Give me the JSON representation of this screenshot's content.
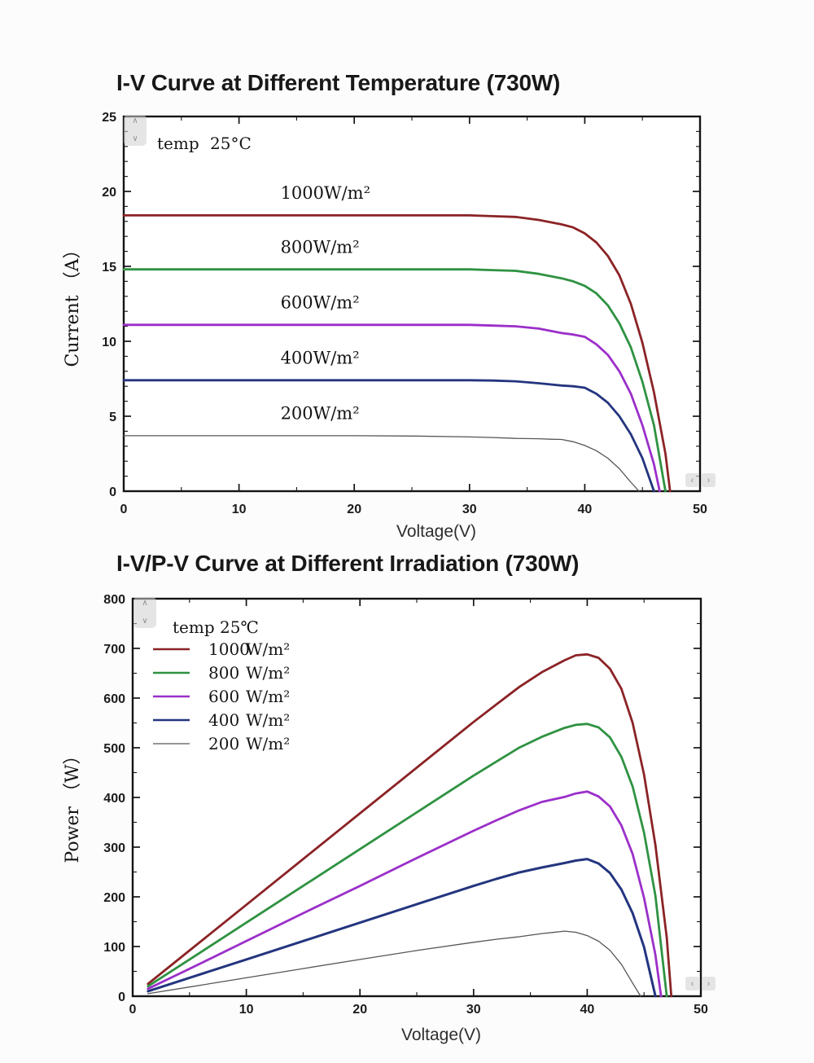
{
  "page_bg": "#fcfcfc",
  "icons": {
    "up": "∧",
    "down": "∨",
    "left": "‹",
    "right": "›"
  },
  "chart_data": [
    {
      "type": "line",
      "title": "I-V Curve at Different Temperature (730W)",
      "xlabel": "Voltage(V)",
      "ylabel": "Current （A）",
      "annotation": {
        "label": "temp",
        "value": "25°C"
      },
      "xlim": [
        0,
        50
      ],
      "ylim": [
        0,
        25
      ],
      "x_axis": {
        "major": 10,
        "minor": 5,
        "labels": [
          "0",
          "10",
          "20",
          "30",
          "40",
          "50"
        ]
      },
      "y_axis": {
        "major": 5,
        "minor": 1,
        "labels": [
          "0",
          "5",
          "10",
          "15",
          "20",
          "25"
        ]
      },
      "grid": false,
      "series": [
        {
          "name": "1000W/m2",
          "color": "#8b2326",
          "width": 2.8,
          "curve_label": {
            "text": "1000W/m²",
            "x": 13.6,
            "y": 19.5
          },
          "points": [
            [
              0,
              18.4
            ],
            [
              30,
              18.4
            ],
            [
              32,
              18.35
            ],
            [
              34,
              18.3
            ],
            [
              36,
              18.1
            ],
            [
              38,
              17.8
            ],
            [
              39,
              17.6
            ],
            [
              40,
              17.2
            ],
            [
              41,
              16.6
            ],
            [
              42,
              15.7
            ],
            [
              43,
              14.4
            ],
            [
              44,
              12.5
            ],
            [
              45,
              9.9
            ],
            [
              46,
              6.6
            ],
            [
              47,
              2.5
            ],
            [
              47.4,
              0
            ]
          ]
        },
        {
          "name": "800W/m2",
          "color": "#2f9242",
          "width": 2.8,
          "curve_label": {
            "text": "800W/m²",
            "x": 13.6,
            "y": 15.9
          },
          "points": [
            [
              0,
              14.8
            ],
            [
              30,
              14.8
            ],
            [
              32,
              14.75
            ],
            [
              34,
              14.7
            ],
            [
              36,
              14.5
            ],
            [
              38,
              14.2
            ],
            [
              39,
              14.0
            ],
            [
              40,
              13.7
            ],
            [
              41,
              13.2
            ],
            [
              42,
              12.4
            ],
            [
              43,
              11.2
            ],
            [
              44,
              9.6
            ],
            [
              45,
              7.3
            ],
            [
              46,
              4.4
            ],
            [
              47,
              0
            ]
          ]
        },
        {
          "name": "600W/m2",
          "color": "#9b2fc9",
          "width": 2.8,
          "curve_label": {
            "text": "600W/m²",
            "x": 13.6,
            "y": 12.2
          },
          "points": [
            [
              0,
              11.1
            ],
            [
              30,
              11.1
            ],
            [
              32,
              11.05
            ],
            [
              34,
              11.0
            ],
            [
              36,
              10.85
            ],
            [
              38,
              10.55
            ],
            [
              39,
              10.45
            ],
            [
              40,
              10.3
            ],
            [
              41,
              9.8
            ],
            [
              42,
              9.1
            ],
            [
              43,
              8.0
            ],
            [
              44,
              6.5
            ],
            [
              45,
              4.4
            ],
            [
              46,
              1.8
            ],
            [
              46.5,
              0
            ]
          ]
        },
        {
          "name": "400W/m2",
          "color": "#24357f",
          "width": 2.8,
          "curve_label": {
            "text": "400W/m²",
            "x": 13.6,
            "y": 8.5
          },
          "points": [
            [
              0,
              7.4
            ],
            [
              30,
              7.4
            ],
            [
              32,
              7.38
            ],
            [
              34,
              7.33
            ],
            [
              36,
              7.2
            ],
            [
              38,
              7.05
            ],
            [
              39,
              7.0
            ],
            [
              40,
              6.9
            ],
            [
              41,
              6.5
            ],
            [
              42,
              5.9
            ],
            [
              43,
              5.0
            ],
            [
              44,
              3.8
            ],
            [
              45,
              2.2
            ],
            [
              46,
              0
            ]
          ]
        },
        {
          "name": "200W/m2",
          "color": "#565656",
          "width": 1.3,
          "curve_label": {
            "text": "200W/m²",
            "x": 13.6,
            "y": 4.8
          },
          "points": [
            [
              0,
              3.7
            ],
            [
              20,
              3.7
            ],
            [
              25,
              3.68
            ],
            [
              30,
              3.62
            ],
            [
              32,
              3.58
            ],
            [
              34,
              3.52
            ],
            [
              36,
              3.5
            ],
            [
              37,
              3.47
            ],
            [
              38,
              3.45
            ],
            [
              39,
              3.3
            ],
            [
              40,
              3.05
            ],
            [
              41,
              2.7
            ],
            [
              42,
              2.2
            ],
            [
              43,
              1.5
            ],
            [
              44,
              0.6
            ],
            [
              44.7,
              0
            ]
          ]
        }
      ]
    },
    {
      "type": "line",
      "title": "I-V/P-V Curve at Different Irradiation (730W)",
      "xlabel": "Voltage(V)",
      "ylabel": "Power （W）",
      "annotation": {
        "label": "temp",
        "value": "25℃"
      },
      "xlim": [
        0,
        50
      ],
      "ylim": [
        0,
        800
      ],
      "x_axis": {
        "major": 10,
        "minor": 5,
        "labels": [
          "0",
          "10",
          "20",
          "30",
          "40",
          "50"
        ]
      },
      "y_axis": {
        "major": 100,
        "minor": 50,
        "labels": [
          "0",
          "100",
          "200",
          "300",
          "400",
          "500",
          "600",
          "700",
          "800"
        ]
      },
      "grid": false,
      "legend": {
        "position": "top-left"
      },
      "series": [
        {
          "name": "1000 W/m2",
          "color": "#8b2326",
          "width": 2.8,
          "legend_value": "1000",
          "legend_unit": "W/m²",
          "points": [
            [
              1.35,
              24.8
            ],
            [
              5,
              92
            ],
            [
              10,
              184
            ],
            [
              15,
              276
            ],
            [
              20,
              368
            ],
            [
              25,
              460
            ],
            [
              30,
              552
            ],
            [
              32,
              587
            ],
            [
              34,
              622
            ],
            [
              36,
              652
            ],
            [
              38,
              676
            ],
            [
              39,
              686
            ],
            [
              40,
              688
            ],
            [
              41,
              681
            ],
            [
              42,
              659
            ],
            [
              43,
              619
            ],
            [
              44,
              550
            ],
            [
              45,
              446
            ],
            [
              46,
              304
            ],
            [
              47,
              118
            ],
            [
              47.4,
              0
            ]
          ]
        },
        {
          "name": "800 W/m2",
          "color": "#2f9242",
          "width": 2.8,
          "legend_value": "800",
          "legend_unit": "W/m²",
          "points": [
            [
              1.35,
              20
            ],
            [
              5,
              74
            ],
            [
              10,
              148
            ],
            [
              15,
              222
            ],
            [
              20,
              296
            ],
            [
              25,
              370
            ],
            [
              30,
              444
            ],
            [
              32,
              472
            ],
            [
              34,
              500
            ],
            [
              36,
              522
            ],
            [
              38,
              540
            ],
            [
              39,
              546
            ],
            [
              40,
              548
            ],
            [
              41,
              541
            ],
            [
              42,
              521
            ],
            [
              43,
              482
            ],
            [
              44,
              422
            ],
            [
              45,
              329
            ],
            [
              46,
              202
            ],
            [
              47,
              0
            ]
          ]
        },
        {
          "name": "600 W/m2",
          "color": "#9b2fc9",
          "width": 2.8,
          "legend_value": "600",
          "legend_unit": "W/m²",
          "points": [
            [
              1.35,
              15
            ],
            [
              5,
              55
            ],
            [
              10,
              111
            ],
            [
              15,
              167
            ],
            [
              20,
              222
            ],
            [
              25,
              278
            ],
            [
              30,
              333
            ],
            [
              32,
              354
            ],
            [
              34,
              374
            ],
            [
              36,
              391
            ],
            [
              38,
              401
            ],
            [
              39,
              408
            ],
            [
              40,
              412
            ],
            [
              41,
              402
            ],
            [
              42,
              382
            ],
            [
              43,
              344
            ],
            [
              44,
              286
            ],
            [
              45,
              198
            ],
            [
              46,
              83
            ],
            [
              46.5,
              0
            ]
          ]
        },
        {
          "name": "400 W/m2",
          "color": "#24357f",
          "width": 3.0,
          "legend_value": "400",
          "legend_unit": "W/m²",
          "points": [
            [
              1.35,
              10
            ],
            [
              5,
              37
            ],
            [
              10,
              74
            ],
            [
              15,
              111
            ],
            [
              20,
              148
            ],
            [
              25,
              185
            ],
            [
              30,
              222
            ],
            [
              32,
              236
            ],
            [
              34,
              249
            ],
            [
              36,
              259
            ],
            [
              38,
              268
            ],
            [
              39,
              273
            ],
            [
              40,
              276
            ],
            [
              41,
              267
            ],
            [
              42,
              248
            ],
            [
              43,
              215
            ],
            [
              44,
              167
            ],
            [
              45,
              99
            ],
            [
              46,
              0
            ]
          ]
        },
        {
          "name": "200 W/m2",
          "color": "#565656",
          "width": 1.3,
          "legend_value": "200",
          "legend_unit": "W/m²",
          "points": [
            [
              1.35,
              5
            ],
            [
              5,
              18.5
            ],
            [
              10,
              37
            ],
            [
              15,
              55.5
            ],
            [
              20,
              74
            ],
            [
              25,
              92
            ],
            [
              30,
              108.6
            ],
            [
              32,
              114.6
            ],
            [
              34,
              119.7
            ],
            [
              36,
              126
            ],
            [
              37,
              128.4
            ],
            [
              38,
              131
            ],
            [
              39,
              128.7
            ],
            [
              40,
              122
            ],
            [
              41,
              110.7
            ],
            [
              42,
              92.4
            ],
            [
              43,
              64.5
            ],
            [
              44,
              26.4
            ],
            [
              44.7,
              0
            ]
          ]
        }
      ]
    }
  ]
}
